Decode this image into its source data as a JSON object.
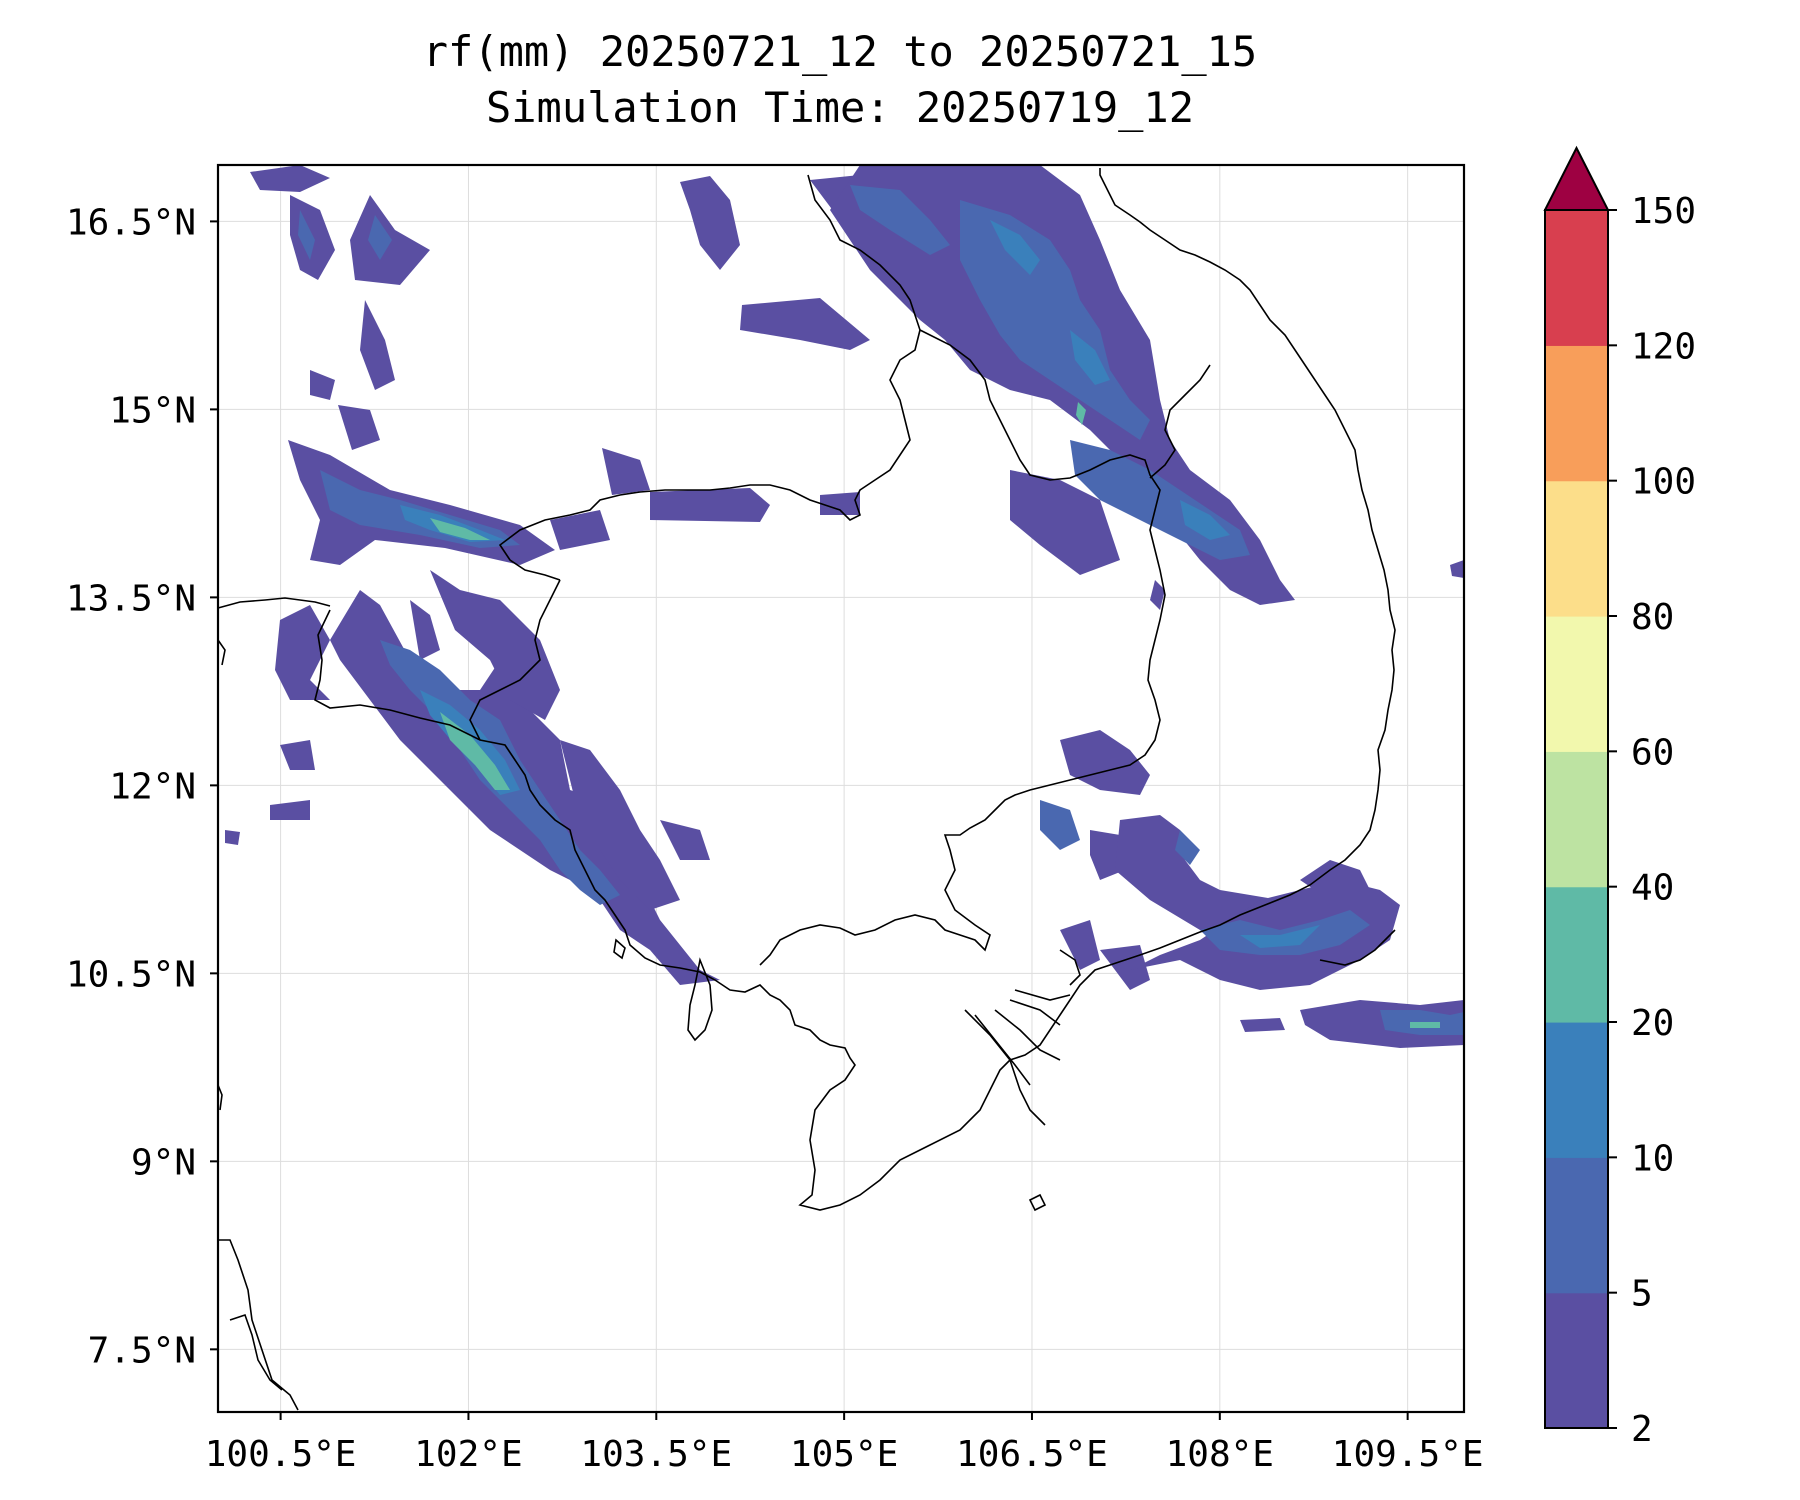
{
  "title": {
    "line1": "rf(mm) 20250721_12 to 20250721_15",
    "line2": "Simulation Time: 20250719_12"
  },
  "map": {
    "lon_range": [
      100.0,
      109.95
    ],
    "lat_range": [
      7.0,
      16.95
    ],
    "x_ticks": [
      {
        "lon": 100.5,
        "label": "100.5°E"
      },
      {
        "lon": 102.0,
        "label": "102°E"
      },
      {
        "lon": 103.5,
        "label": "103.5°E"
      },
      {
        "lon": 105.0,
        "label": "105°E"
      },
      {
        "lon": 106.5,
        "label": "106.5°E"
      },
      {
        "lon": 108.0,
        "label": "108°E"
      },
      {
        "lon": 109.5,
        "label": "109.5°E"
      }
    ],
    "y_ticks": [
      {
        "lat": 16.5,
        "label": "16.5°N"
      },
      {
        "lat": 15.0,
        "label": "15°N"
      },
      {
        "lat": 13.5,
        "label": "13.5°N"
      },
      {
        "lat": 12.0,
        "label": "12°N"
      },
      {
        "lat": 10.5,
        "label": "10.5°N"
      },
      {
        "lat": 9.0,
        "label": "9°N"
      },
      {
        "lat": 7.5,
        "label": "7.5°N"
      }
    ],
    "grid": true
  },
  "colorbar": {
    "levels": [
      {
        "value": 2,
        "label": "2"
      },
      {
        "value": 5,
        "label": "5"
      },
      {
        "value": 10,
        "label": "10"
      },
      {
        "value": 20,
        "label": "20"
      },
      {
        "value": 40,
        "label": "40"
      },
      {
        "value": 60,
        "label": "60"
      },
      {
        "value": 80,
        "label": "80"
      },
      {
        "value": 100,
        "label": "100"
      },
      {
        "value": 120,
        "label": "120"
      },
      {
        "value": 150,
        "label": "150"
      }
    ],
    "colors": [
      "#5a4fa2",
      "#4a68b0",
      "#3a80bb",
      "#5fbaa6",
      "#bde3a2",
      "#f2f8ad",
      "#fcde8a",
      "#f89e5a",
      "#d83f4f"
    ],
    "extend_color": "#9e0142",
    "extend": "max"
  },
  "colors": {
    "coastline": "#000000",
    "border": "#000000",
    "grid": "#dddddd"
  }
}
